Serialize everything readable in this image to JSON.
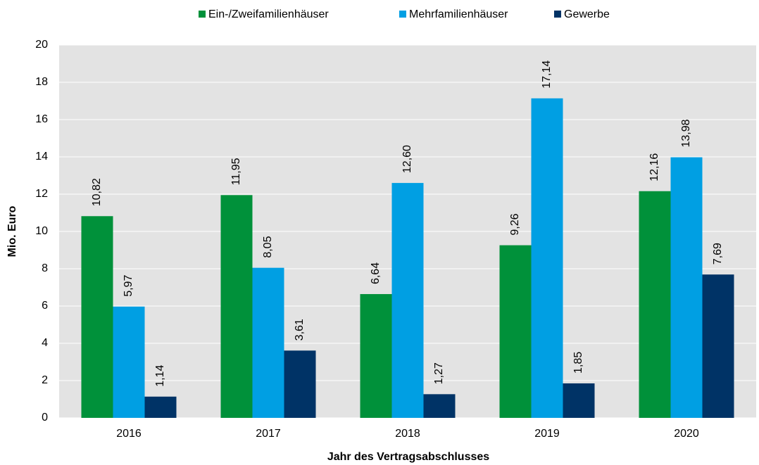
{
  "chart_data": {
    "type": "bar",
    "xlabel": "Jahr des Vertragsabschlusses",
    "ylabel": "Mio. Euro",
    "categories": [
      "2016",
      "2017",
      "2018",
      "2019",
      "2020"
    ],
    "series": [
      {
        "name": "Ein-/Zweifamilienhäuser",
        "color": "#00913a",
        "values": [
          10.82,
          11.95,
          6.64,
          9.26,
          12.16
        ],
        "value_labels": [
          "10,82",
          "11,95",
          "6,64",
          "9,26",
          "12,16"
        ]
      },
      {
        "name": "Mehrfamilienhäuser",
        "color": "#009fe3",
        "values": [
          5.97,
          8.05,
          12.6,
          17.14,
          13.98
        ],
        "value_labels": [
          "5,97",
          "8,05",
          "12,60",
          "17,14",
          "13,98"
        ]
      },
      {
        "name": "Gewerbe",
        "color": "#003366",
        "values": [
          1.14,
          3.61,
          1.27,
          1.85,
          7.69
        ],
        "value_labels": [
          "1,14",
          "3,61",
          "1,27",
          "1,85",
          "7,69"
        ]
      }
    ],
    "ylim": [
      0,
      20
    ],
    "yticks": [
      0,
      2,
      4,
      6,
      8,
      10,
      12,
      14,
      16,
      18,
      20
    ],
    "grid": true,
    "legend": "top"
  }
}
